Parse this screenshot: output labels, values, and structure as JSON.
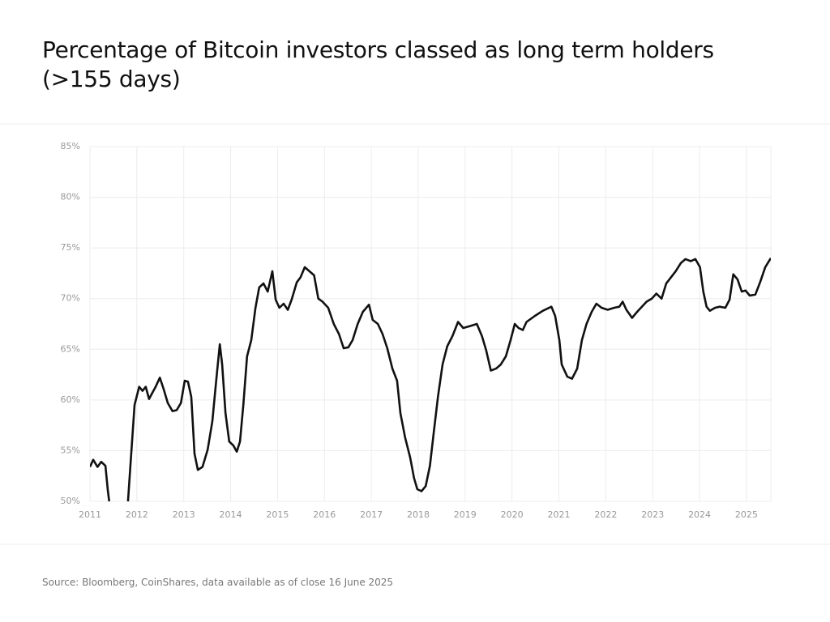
{
  "chart_data": {
    "type": "line",
    "title": "Percentage of Bitcoin investors classed as long term holders (>155 days)",
    "source": "Source: Bloomberg, CoinShares, data available as of close 16 June 2025",
    "grid": true,
    "xlim": [
      2011,
      2025.52
    ],
    "xticks": [
      2011,
      2012,
      2013,
      2014,
      2015,
      2016,
      2017,
      2018,
      2019,
      2020,
      2021,
      2022,
      2023,
      2024,
      2025
    ],
    "ylim": [
      50,
      85
    ],
    "yticks": [
      {
        "value": 50,
        "label": "50%"
      },
      {
        "value": 55,
        "label": "55%"
      },
      {
        "value": 60,
        "label": "60%"
      },
      {
        "value": 65,
        "label": "65%"
      },
      {
        "value": 70,
        "label": "70%"
      },
      {
        "value": 75,
        "label": "75%"
      },
      {
        "value": 80,
        "label": "80%"
      },
      {
        "value": 85,
        "label": "85%"
      }
    ],
    "x": [
      2011.0,
      2011.07,
      2011.16,
      2011.24,
      2011.33,
      2011.38,
      2011.41,
      2011.6,
      2011.81,
      2011.88,
      2011.95,
      2012.05,
      2012.12,
      2012.19,
      2012.26,
      2012.33,
      2012.4,
      2012.49,
      2012.57,
      2012.66,
      2012.76,
      2012.85,
      2012.94,
      2013.02,
      2013.09,
      2013.16,
      2013.23,
      2013.3,
      2013.4,
      2013.51,
      2013.61,
      2013.7,
      2013.77,
      2013.82,
      2013.89,
      2013.97,
      2014.06,
      2014.13,
      2014.2,
      2014.27,
      2014.35,
      2014.44,
      2014.53,
      2014.61,
      2014.7,
      2014.79,
      2014.89,
      2014.96,
      2015.04,
      2015.13,
      2015.22,
      2015.3,
      2015.41,
      2015.49,
      2015.58,
      2015.68,
      2015.78,
      2015.87,
      2015.96,
      2016.08,
      2016.2,
      2016.31,
      2016.41,
      2016.51,
      2016.6,
      2016.71,
      2016.82,
      2016.95,
      2017.03,
      2017.14,
      2017.24,
      2017.34,
      2017.45,
      2017.55,
      2017.62,
      2017.72,
      2017.83,
      2017.91,
      2017.98,
      2018.07,
      2018.16,
      2018.25,
      2018.33,
      2018.42,
      2018.52,
      2018.62,
      2018.73,
      2018.85,
      2018.96,
      2019.11,
      2019.25,
      2019.36,
      2019.45,
      2019.55,
      2019.66,
      2019.76,
      2019.87,
      2019.97,
      2020.06,
      2020.14,
      2020.23,
      2020.31,
      2020.49,
      2020.66,
      2020.84,
      2020.92,
      2021.01,
      2021.06,
      2021.18,
      2021.28,
      2021.39,
      2021.49,
      2021.59,
      2021.7,
      2021.8,
      2021.91,
      2022.04,
      2022.18,
      2022.29,
      2022.36,
      2022.44,
      2022.56,
      2022.67,
      2022.77,
      2022.87,
      2022.98,
      2023.08,
      2023.19,
      2023.29,
      2023.39,
      2023.49,
      2023.6,
      2023.7,
      2023.81,
      2023.91,
      2024.01,
      2024.08,
      2024.15,
      2024.22,
      2024.33,
      2024.43,
      2024.55,
      2024.64,
      2024.72,
      2024.81,
      2024.9,
      2024.98,
      2025.07,
      2025.19,
      2025.29,
      2025.4,
      2025.52
    ],
    "series": [
      {
        "name": "Long term holders",
        "color": "#111111",
        "values": [
          53.4,
          54.1,
          53.4,
          53.9,
          53.5,
          51.1,
          50,
          null,
          50,
          54.7,
          59.5,
          61.3,
          60.9,
          61.3,
          60.1,
          60.7,
          61.3,
          62.2,
          61.1,
          59.7,
          58.9,
          59.0,
          59.7,
          61.9,
          61.8,
          60.3,
          54.7,
          53.1,
          53.4,
          55.1,
          57.9,
          62.3,
          65.5,
          63.5,
          58.7,
          55.9,
          55.5,
          54.9,
          55.9,
          59.5,
          64.3,
          65.9,
          69.1,
          71.1,
          71.5,
          70.7,
          72.7,
          69.9,
          69.1,
          69.5,
          68.9,
          69.9,
          71.6,
          72.1,
          73.1,
          72.7,
          72.3,
          70.0,
          69.7,
          69.1,
          67.5,
          66.5,
          65.1,
          65.2,
          65.9,
          67.5,
          68.7,
          69.4,
          67.9,
          67.5,
          66.5,
          65.1,
          63.1,
          61.9,
          58.7,
          56.3,
          54.3,
          52.3,
          51.2,
          51.0,
          51.5,
          53.5,
          56.7,
          60.3,
          63.5,
          65.3,
          66.3,
          67.7,
          67.1,
          67.3,
          67.5,
          66.3,
          64.9,
          62.9,
          63.1,
          63.5,
          64.3,
          65.9,
          67.5,
          67.1,
          66.9,
          67.7,
          68.3,
          68.8,
          69.2,
          68.3,
          65.9,
          63.5,
          62.3,
          62.1,
          63.1,
          65.9,
          67.5,
          68.7,
          69.5,
          69.1,
          68.9,
          69.1,
          69.2,
          69.7,
          68.9,
          68.1,
          68.7,
          69.2,
          69.7,
          70.0,
          70.5,
          70.0,
          71.5,
          72.1,
          72.7,
          73.5,
          73.9,
          73.7,
          73.9,
          73.1,
          70.7,
          69.2,
          68.8,
          69.1,
          69.2,
          69.1,
          69.9,
          72.4,
          71.9,
          70.7,
          70.8,
          70.3,
          70.4,
          71.6,
          73.1,
          74.0
        ]
      }
    ]
  }
}
